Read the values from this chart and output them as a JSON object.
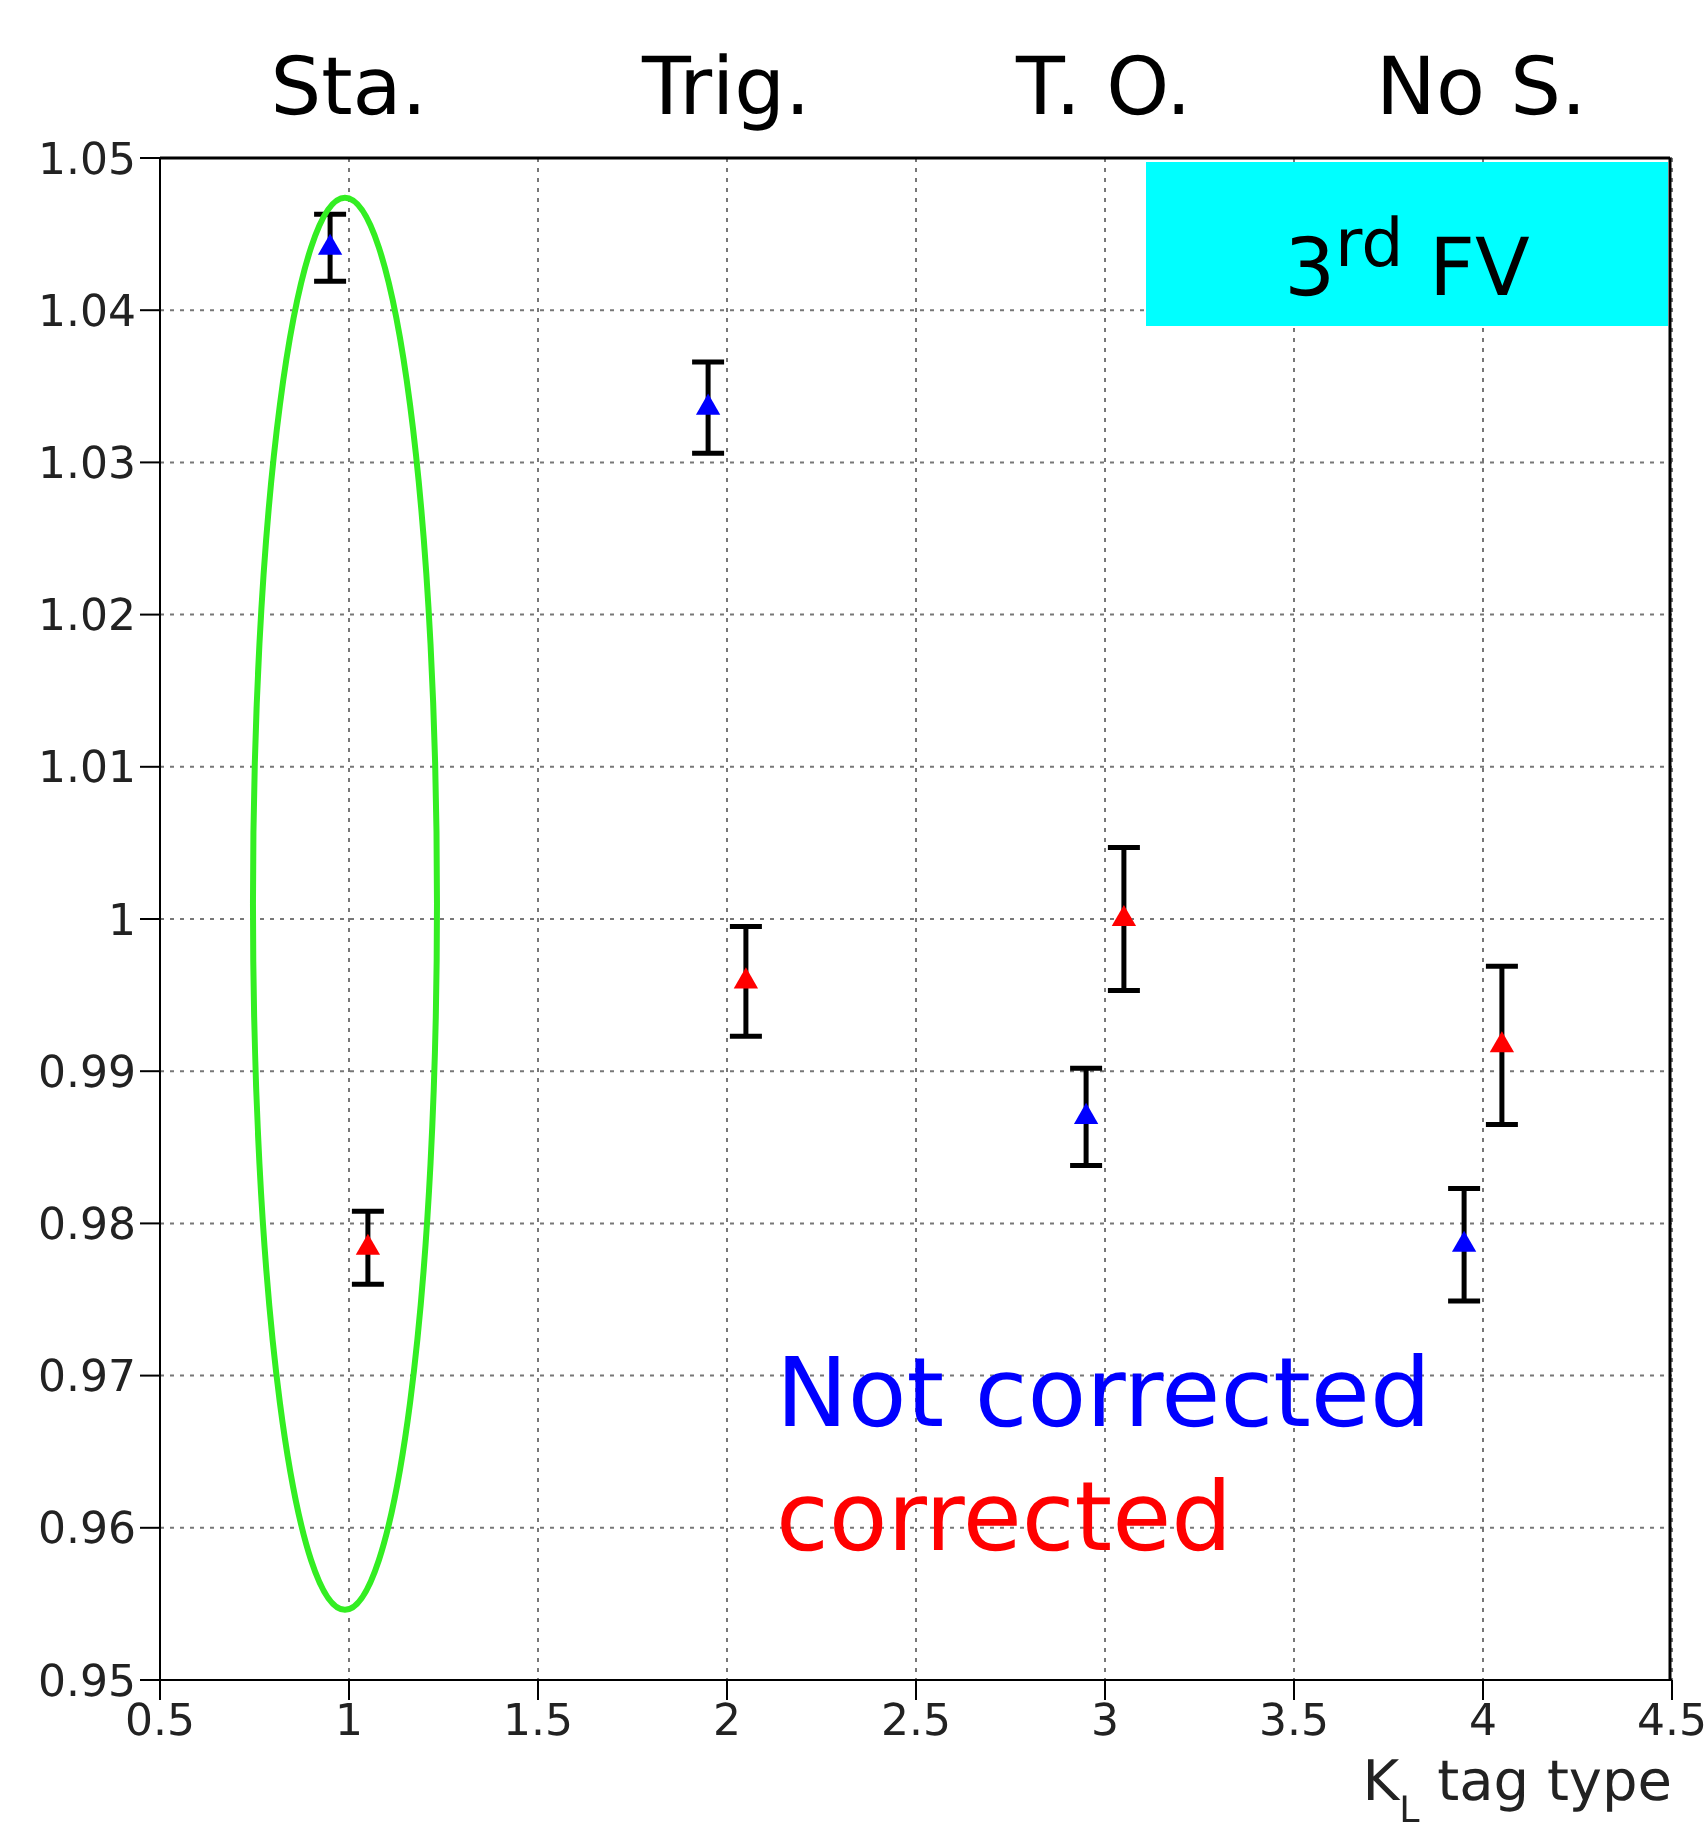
{
  "chart_data": {
    "type": "scatter",
    "xlabel": "K$_{L}$ tag type",
    "annotations": [
      "3$^{rd}$ FV",
      "Sta.",
      "Trig.",
      "T. O.",
      "No S."
    ],
    "xlim": [
      0.5,
      4.5
    ],
    "xticks": [
      0.5,
      1,
      1.5,
      2,
      2.5,
      3,
      3.5,
      4,
      4.5
    ],
    "ylim": [
      0.95,
      1.05
    ],
    "yticks": [
      0.95,
      0.96,
      0.97,
      0.98,
      0.99,
      1,
      1.01,
      1.02,
      1.03,
      1.04,
      1.05
    ],
    "grid": true,
    "marker": "triangle",
    "legend": "bottom right",
    "series": [
      {
        "name": "Not corrected",
        "color": "#0000ff",
        "x": [
          0.95,
          1.95,
          2.95,
          3.95
        ],
        "values": [
          1.0441,
          1.0336,
          0.987,
          0.9786
        ],
        "errors": [
          0.0022,
          0.003,
          0.0032,
          0.0037
        ]
      },
      {
        "name": "corrected",
        "color": "#ff0000",
        "x": [
          1.05,
          2.05,
          3.05,
          4.05
        ],
        "values": [
          0.9784,
          0.9959,
          1.0,
          0.9917
        ],
        "errors": [
          0.0024,
          0.0036,
          0.0047,
          0.0052
        ]
      }
    ]
  }
}
